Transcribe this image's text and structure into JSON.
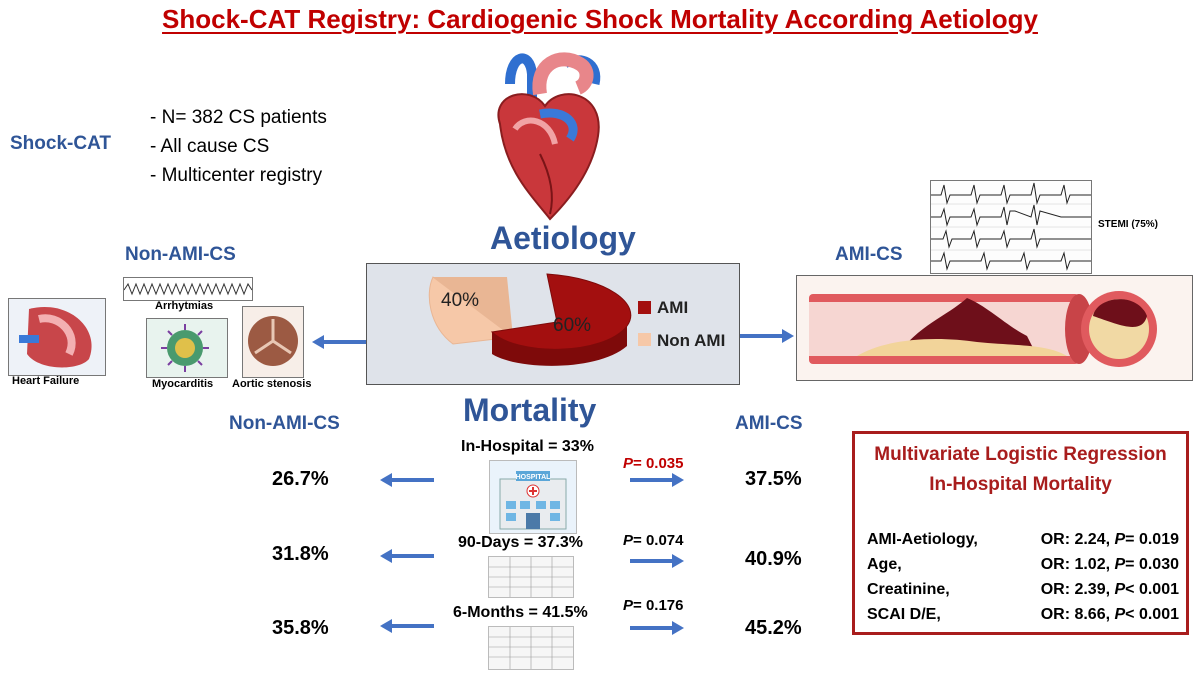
{
  "title": "Shock-CAT Registry: Cardiogenic Shock Mortality According Aetiology",
  "shockcat": {
    "label": "Shock-CAT",
    "bullets": [
      "- N= 382 CS patients",
      "- All cause CS",
      "- Multicenter registry"
    ]
  },
  "aetiology": {
    "heading": "Aetiology",
    "legend": [
      {
        "label": "AMI",
        "color": "#a30f0f"
      },
      {
        "label": "Non AMI",
        "color": "#f6c8a8"
      }
    ],
    "slice_labels": [
      "40%",
      "60%"
    ]
  },
  "chart_data": {
    "type": "pie",
    "categories": [
      "AMI",
      "Non AMI"
    ],
    "values": [
      60,
      40
    ]
  },
  "non_ami": {
    "heading": "Non-AMI-CS",
    "items": [
      "Heart Failure",
      "Arrhytmias",
      "Myocarditis",
      "Aortic stenosis"
    ]
  },
  "ami": {
    "heading": "AMI-CS",
    "stemi_label": "STEMI  (75%)"
  },
  "mortality": {
    "heading": "Mortality",
    "left_heading": "Non-AMI-CS",
    "right_heading": "AMI-CS",
    "hospital_sign": "HOSPITAL",
    "rows": [
      {
        "label": "In-Hospital  = 33%",
        "p": "P",
        "p_value": "= 0.035",
        "non_ami": "26.7%",
        "ami": "37.5%"
      },
      {
        "label": "90-Days = 37.3%",
        "p": "P",
        "p_value": "= 0.074",
        "non_ami": "31.8%",
        "ami": "40.9%"
      },
      {
        "label": "6-Months  = 41.5%",
        "p": "P",
        "p_value": "= 0.176",
        "non_ami": "35.8%",
        "ami": "45.2%"
      }
    ]
  },
  "regression": {
    "title_line1": "Multivariate Logistic Regression",
    "title_line2": "In-Hospital Mortality",
    "rows": [
      {
        "name": "AMI-Aetiology,",
        "or": "OR: 2.24,",
        "p": "P",
        "pv": "= 0.019"
      },
      {
        "name": "Age,",
        "or": "OR: 1.02,",
        "p": "P",
        "pv": "= 0.030"
      },
      {
        "name": "Creatinine,",
        "or": "OR: 2.39,",
        "p": "P",
        "pv": "< 0.001"
      },
      {
        "name": "SCAI D/E,",
        "or": "OR: 8.66,",
        "p": "P",
        "pv": "< 0.001"
      }
    ]
  },
  "colors": {
    "title": "#c00000",
    "heading_blue": "#2f5597",
    "arrow_blue": "#4472c4",
    "regression_border": "#a81d1d"
  }
}
